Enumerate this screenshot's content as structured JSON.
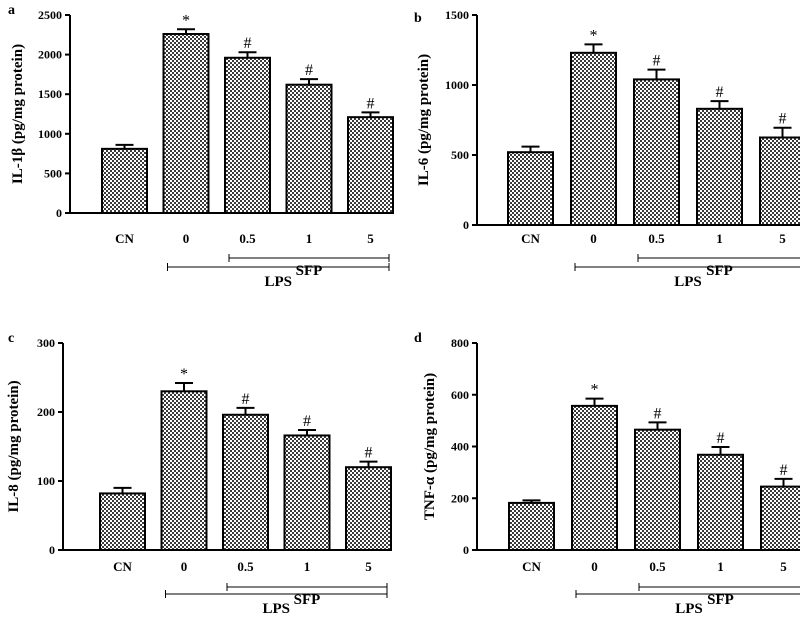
{
  "chart_data": [
    {
      "type": "bar",
      "panel": "a",
      "ylabel": "IL-1β  (pg/mg protein)",
      "ylim": [
        0,
        2500
      ],
      "yticks": [
        0,
        500,
        1000,
        1500,
        2000,
        2500
      ],
      "categories": [
        "CN",
        "0",
        "0.5",
        "1",
        "5"
      ],
      "values": [
        810,
        2260,
        1960,
        1620,
        1210
      ],
      "errors": [
        50,
        60,
        70,
        70,
        60
      ],
      "annotations": [
        "",
        "*",
        "#",
        "#",
        "#"
      ],
      "groups": [
        {
          "label": "SFP",
          "from": 2,
          "to": 4
        },
        {
          "label": "LPS",
          "from": 1,
          "to": 4
        }
      ]
    },
    {
      "type": "bar",
      "panel": "b",
      "ylabel": "IL-6  (pg/mg protein)",
      "ylim": [
        0,
        1500
      ],
      "yticks": [
        0,
        500,
        1000,
        1500
      ],
      "categories": [
        "CN",
        "0",
        "0.5",
        "1",
        "5"
      ],
      "values": [
        520,
        1230,
        1040,
        830,
        625
      ],
      "errors": [
        40,
        60,
        70,
        55,
        70
      ],
      "annotations": [
        "",
        "*",
        "#",
        "#",
        "#"
      ],
      "groups": [
        {
          "label": "SFP",
          "from": 2,
          "to": 4
        },
        {
          "label": "LPS",
          "from": 1,
          "to": 4
        }
      ]
    },
    {
      "type": "bar",
      "panel": "c",
      "ylabel": "IL-8  (pg/mg protein)",
      "ylim": [
        0,
        300
      ],
      "yticks": [
        0,
        100,
        200,
        300
      ],
      "categories": [
        "CN",
        "0",
        "0.5",
        "1",
        "5"
      ],
      "values": [
        82,
        230,
        196,
        166,
        120
      ],
      "errors": [
        8,
        12,
        10,
        8,
        8
      ],
      "annotations": [
        "",
        "*",
        "#",
        "#",
        "#"
      ],
      "groups": [
        {
          "label": "SFP",
          "from": 2,
          "to": 4
        },
        {
          "label": "LPS",
          "from": 1,
          "to": 4
        }
      ]
    },
    {
      "type": "bar",
      "panel": "d",
      "ylabel": "TNF-α  (pg/mg protein)",
      "ylim": [
        0,
        800
      ],
      "yticks": [
        0,
        200,
        400,
        600,
        800
      ],
      "categories": [
        "CN",
        "0",
        "0.5",
        "1",
        "5"
      ],
      "values": [
        182,
        557,
        465,
        368,
        245
      ],
      "errors": [
        10,
        28,
        28,
        30,
        30
      ],
      "annotations": [
        "",
        "*",
        "#",
        "#",
        "#"
      ],
      "groups": [
        {
          "label": "SFP",
          "from": 2,
          "to": 4
        },
        {
          "label": "LPS",
          "from": 1,
          "to": 4
        }
      ]
    }
  ]
}
